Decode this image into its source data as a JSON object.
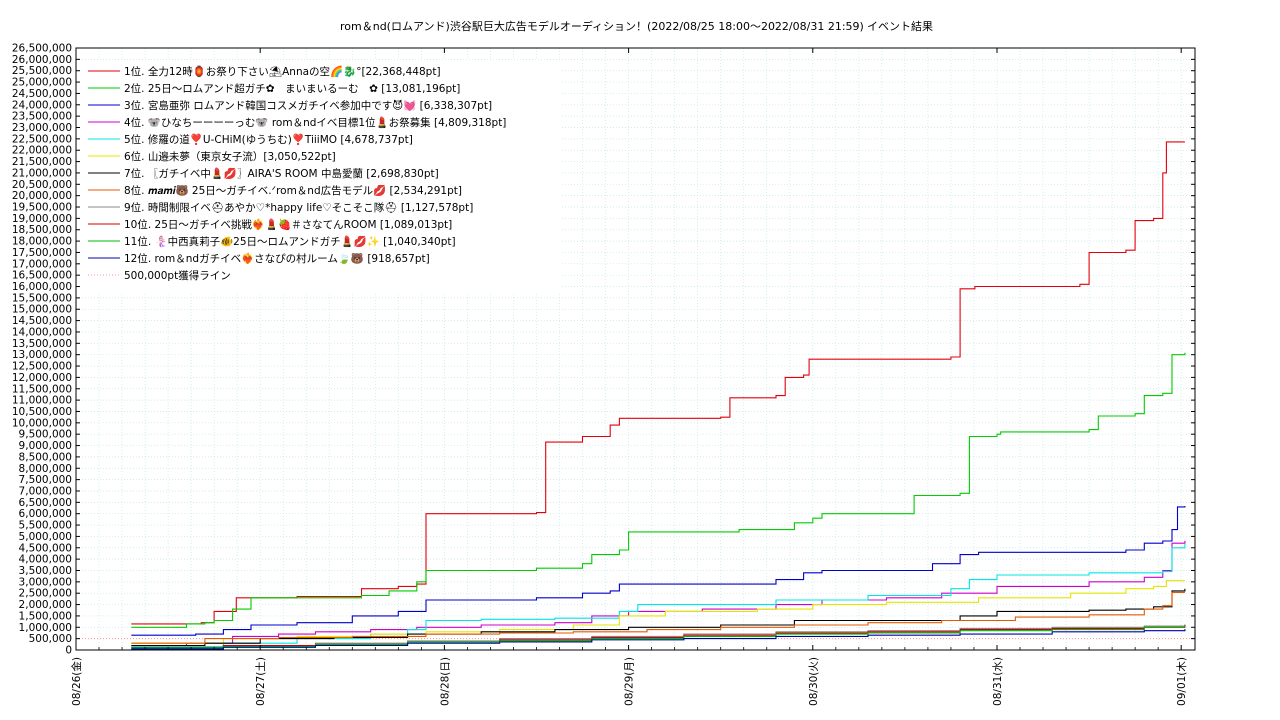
{
  "chart_data": {
    "type": "line",
    "title": "rom＆nd(ロムアンド)渋谷駅巨大広告モデルオーディション！(2022/08/25 18:00〜2022/08/31 21:59)",
    "subtitle": "イベント結果",
    "xlabel": "",
    "ylabel": "",
    "grid": true,
    "legend_position": "top-left",
    "x_ticks": [
      "08/26(金)",
      "08/27(土)",
      "08/28(日)",
      "08/29(月)",
      "08/30(火)",
      "08/31(水)",
      "09/01(木)"
    ],
    "x_range_days": [
      0,
      6.075
    ],
    "ylim": [
      0,
      26500000
    ],
    "y_tick_step": 500000,
    "y_ticks": [
      "0",
      "500,000",
      "1,000,000",
      "1,500,000",
      "2,000,000",
      "2,500,000",
      "3,000,000",
      "3,500,000",
      "4,000,000",
      "4,500,000",
      "5,000,000",
      "5,500,000",
      "6,000,000",
      "6,500,000",
      "7,000,000",
      "7,500,000",
      "8,000,000",
      "8,500,000",
      "9,000,000",
      "9,500,000",
      "10,000,000",
      "10,500,000",
      "11,000,000",
      "11,500,000",
      "12,000,000",
      "12,500,000",
      "13,000,000",
      "13,500,000",
      "14,000,000",
      "14,500,000",
      "15,000,000",
      "15,500,000",
      "16,000,000",
      "16,500,000",
      "17,000,000",
      "17,500,000",
      "18,000,000",
      "18,500,000",
      "19,000,000",
      "19,500,000",
      "20,000,000",
      "20,500,000",
      "21,000,000",
      "21,500,000",
      "22,000,000",
      "22,500,000",
      "23,000,000",
      "23,500,000",
      "24,000,000",
      "24,500,000",
      "25,000,000",
      "25,500,000",
      "26,000,000",
      "26,500,000"
    ],
    "series": [
      {
        "name": "1位. 全力12時🏮お祭り下さい⛱Annaの空🌈🐉°[22,368,448pt]",
        "color": "#e3000b",
        "points": [
          [
            0.3,
            1150000
          ],
          [
            0.68,
            1200000
          ],
          [
            0.75,
            1700000
          ],
          [
            0.87,
            2300000
          ],
          [
            1.2,
            2350000
          ],
          [
            1.55,
            2700000
          ],
          [
            1.75,
            2800000
          ],
          [
            1.85,
            2900000
          ],
          [
            1.9,
            6000000
          ],
          [
            2.5,
            6050000
          ],
          [
            2.55,
            9150000
          ],
          [
            2.75,
            9400000
          ],
          [
            2.9,
            9900000
          ],
          [
            2.95,
            10200000
          ],
          [
            3.5,
            10250000
          ],
          [
            3.55,
            11100000
          ],
          [
            3.8,
            11200000
          ],
          [
            3.85,
            12000000
          ],
          [
            3.95,
            12100000
          ],
          [
            3.98,
            12800000
          ],
          [
            4.05,
            12800000
          ],
          [
            4.75,
            12900000
          ],
          [
            4.8,
            15900000
          ],
          [
            4.88,
            16000000
          ],
          [
            5.45,
            16100000
          ],
          [
            5.5,
            17500000
          ],
          [
            5.7,
            17600000
          ],
          [
            5.75,
            18900000
          ],
          [
            5.85,
            19000000
          ],
          [
            5.9,
            21000000
          ],
          [
            5.92,
            22368448
          ],
          [
            6.02,
            22368448
          ]
        ]
      },
      {
        "name": "2位. 25日〜ロムアンド超ガチ✿　まいまいるーむ　✿ [13,081,196pt]",
        "color": "#00cc00",
        "points": [
          [
            0.3,
            1000000
          ],
          [
            0.6,
            1150000
          ],
          [
            0.7,
            1200000
          ],
          [
            0.75,
            1300000
          ],
          [
            0.85,
            1800000
          ],
          [
            0.95,
            2300000
          ],
          [
            1.55,
            2400000
          ],
          [
            1.7,
            2600000
          ],
          [
            1.85,
            3000000
          ],
          [
            1.9,
            3500000
          ],
          [
            2.5,
            3600000
          ],
          [
            2.75,
            3800000
          ],
          [
            2.8,
            4200000
          ],
          [
            2.95,
            4400000
          ],
          [
            3.0,
            5200000
          ],
          [
            3.6,
            5300000
          ],
          [
            3.9,
            5600000
          ],
          [
            4.0,
            5800000
          ],
          [
            4.05,
            6000000
          ],
          [
            4.5,
            6000000
          ],
          [
            4.55,
            6800000
          ],
          [
            4.8,
            6900000
          ],
          [
            4.85,
            9400000
          ],
          [
            5.0,
            9500000
          ],
          [
            5.02,
            9600000
          ],
          [
            5.5,
            9700000
          ],
          [
            5.55,
            10300000
          ],
          [
            5.75,
            10400000
          ],
          [
            5.8,
            11200000
          ],
          [
            5.9,
            11300000
          ],
          [
            5.95,
            13000000
          ],
          [
            6.02,
            13081196
          ]
        ]
      },
      {
        "name": "3位. 宮島亜弥 ロムアンド韓国コスメガチイベ参加中です😈💓 [6,338,307pt]",
        "color": "#0000cc",
        "points": [
          [
            0.3,
            650000
          ],
          [
            0.65,
            700000
          ],
          [
            0.8,
            900000
          ],
          [
            0.95,
            1100000
          ],
          [
            1.2,
            1200000
          ],
          [
            1.5,
            1500000
          ],
          [
            1.75,
            1700000
          ],
          [
            1.9,
            2200000
          ],
          [
            2.5,
            2300000
          ],
          [
            2.75,
            2500000
          ],
          [
            2.9,
            2600000
          ],
          [
            2.95,
            2900000
          ],
          [
            3.6,
            2900000
          ],
          [
            3.8,
            3100000
          ],
          [
            3.95,
            3400000
          ],
          [
            4.05,
            3500000
          ],
          [
            4.5,
            3500000
          ],
          [
            4.65,
            3800000
          ],
          [
            4.8,
            4200000
          ],
          [
            4.9,
            4300000
          ],
          [
            5.0,
            4300000
          ],
          [
            5.7,
            4400000
          ],
          [
            5.8,
            4700000
          ],
          [
            5.9,
            4800000
          ],
          [
            5.95,
            5300000
          ],
          [
            5.98,
            6300000
          ],
          [
            6.02,
            6338307
          ]
        ]
      },
      {
        "name": "4位. 🐨ひなちーーーーっむ🐨 rom＆ndイベ目標1位💄お祭募集 [4,809,318pt]",
        "color": "#cc00cc",
        "points": [
          [
            0.3,
            200000
          ],
          [
            0.6,
            300000
          ],
          [
            0.85,
            600000
          ],
          [
            1.1,
            700000
          ],
          [
            1.3,
            800000
          ],
          [
            1.6,
            900000
          ],
          [
            1.85,
            1000000
          ],
          [
            2.2,
            1100000
          ],
          [
            2.6,
            1200000
          ],
          [
            2.8,
            1500000
          ],
          [
            3.0,
            1700000
          ],
          [
            3.4,
            1800000
          ],
          [
            3.8,
            2000000
          ],
          [
            4.05,
            2200000
          ],
          [
            4.4,
            2300000
          ],
          [
            4.7,
            2500000
          ],
          [
            5.0,
            2800000
          ],
          [
            5.5,
            3000000
          ],
          [
            5.8,
            3200000
          ],
          [
            5.9,
            3500000
          ],
          [
            5.95,
            4700000
          ],
          [
            6.02,
            4809318
          ]
        ]
      },
      {
        "name": "5位. 修羅の道❣️U-CHiM(ゆうちむ)❣️TiiiMO [4,678,737pt]",
        "color": "#00e5e5",
        "points": [
          [
            0.3,
            150000
          ],
          [
            0.8,
            300000
          ],
          [
            1.2,
            500000
          ],
          [
            1.6,
            700000
          ],
          [
            1.8,
            900000
          ],
          [
            1.9,
            1300000
          ],
          [
            2.2,
            1350000
          ],
          [
            2.6,
            1400000
          ],
          [
            2.95,
            1700000
          ],
          [
            3.05,
            2000000
          ],
          [
            3.8,
            2200000
          ],
          [
            4.3,
            2400000
          ],
          [
            4.75,
            2700000
          ],
          [
            4.85,
            3100000
          ],
          [
            5.0,
            3300000
          ],
          [
            5.5,
            3400000
          ],
          [
            5.9,
            3450000
          ],
          [
            5.95,
            4500000
          ],
          [
            6.02,
            4678737
          ]
        ]
      },
      {
        "name": "6位. 山邉未夢（東京女子流）[3,050,522pt]",
        "color": "#e5e500",
        "points": [
          [
            0.3,
            300000
          ],
          [
            0.8,
            500000
          ],
          [
            1.2,
            600000
          ],
          [
            1.6,
            700000
          ],
          [
            1.9,
            800000
          ],
          [
            2.3,
            900000
          ],
          [
            2.7,
            1100000
          ],
          [
            2.95,
            1500000
          ],
          [
            3.2,
            1700000
          ],
          [
            3.7,
            1800000
          ],
          [
            4.0,
            2000000
          ],
          [
            4.4,
            2100000
          ],
          [
            4.9,
            2300000
          ],
          [
            5.4,
            2500000
          ],
          [
            5.7,
            2700000
          ],
          [
            5.85,
            2800000
          ],
          [
            5.92,
            3050522
          ],
          [
            6.02,
            3050522
          ]
        ]
      },
      {
        "name": "7位. 〖ガチイベ中💄💋〗AIRA'S ROOM 中島愛蘭 [2,698,830pt]",
        "color": "#000000",
        "points": [
          [
            0.3,
            200000
          ],
          [
            0.7,
            300000
          ],
          [
            1.0,
            500000
          ],
          [
            1.4,
            550000
          ],
          [
            1.8,
            700000
          ],
          [
            2.2,
            800000
          ],
          [
            2.6,
            900000
          ],
          [
            3.0,
            1000000
          ],
          [
            3.5,
            1100000
          ],
          [
            3.9,
            1300000
          ],
          [
            4.3,
            1300000
          ],
          [
            4.8,
            1500000
          ],
          [
            5.0,
            1700000
          ],
          [
            5.5,
            1750000
          ],
          [
            5.7,
            1800000
          ],
          [
            5.85,
            1900000
          ],
          [
            5.95,
            2600000
          ],
          [
            6.02,
            2698830
          ]
        ]
      },
      {
        "name": "8位. 𝒎𝒂𝒎𝒊🐻 25日〜ガチイベ.ᐟrom＆nd広告モデル💋 [2,534,291pt]",
        "color": "#e55a00",
        "points": [
          [
            0.3,
            300000
          ],
          [
            0.7,
            500000
          ],
          [
            1.1,
            550000
          ],
          [
            1.5,
            600000
          ],
          [
            1.9,
            700000
          ],
          [
            2.3,
            750000
          ],
          [
            2.7,
            800000
          ],
          [
            3.1,
            900000
          ],
          [
            3.5,
            1000000
          ],
          [
            3.9,
            1100000
          ],
          [
            4.3,
            1200000
          ],
          [
            4.7,
            1300000
          ],
          [
            5.1,
            1450000
          ],
          [
            5.5,
            1550000
          ],
          [
            5.8,
            1800000
          ],
          [
            5.9,
            1950000
          ],
          [
            5.95,
            2534291
          ],
          [
            6.02,
            2534291
          ]
        ]
      },
      {
        "name": "9位. 時間制限イベ⛑あやか♡*happy life♡そこそこ隊⛑ [1,127,578pt]",
        "color": "#888888",
        "points": [
          [
            0.3,
            100000
          ],
          [
            0.8,
            200000
          ],
          [
            1.3,
            300000
          ],
          [
            1.8,
            400000
          ],
          [
            2.3,
            500000
          ],
          [
            2.8,
            600000
          ],
          [
            3.3,
            700000
          ],
          [
            3.8,
            800000
          ],
          [
            4.3,
            850000
          ],
          [
            4.8,
            950000
          ],
          [
            5.3,
            1000000
          ],
          [
            5.8,
            1050000
          ],
          [
            6.02,
            1127578
          ]
        ]
      },
      {
        "name": "10位. 25日〜ガチイベ挑戦❤️‍🔥💄🍓＃さなてんROOM [1,089,013pt]",
        "color": "#cc0000",
        "points": [
          [
            0.3,
            100000
          ],
          [
            0.8,
            200000
          ],
          [
            1.3,
            250000
          ],
          [
            1.8,
            350000
          ],
          [
            2.3,
            450000
          ],
          [
            2.8,
            550000
          ],
          [
            3.3,
            650000
          ],
          [
            3.8,
            750000
          ],
          [
            4.3,
            800000
          ],
          [
            4.8,
            900000
          ],
          [
            5.3,
            950000
          ],
          [
            5.8,
            1000000
          ],
          [
            6.02,
            1089013
          ]
        ]
      },
      {
        "name": "11位. 🧜🏻‍♀️中西真莉子🐠25日〜ロムアンドガチ💄💋✨ [1,040,340pt]",
        "color": "#00b800",
        "points": [
          [
            0.3,
            80000
          ],
          [
            0.8,
            150000
          ],
          [
            1.3,
            250000
          ],
          [
            1.8,
            350000
          ],
          [
            2.3,
            400000
          ],
          [
            2.8,
            500000
          ],
          [
            3.3,
            600000
          ],
          [
            3.8,
            700000
          ],
          [
            4.3,
            750000
          ],
          [
            4.8,
            850000
          ],
          [
            5.3,
            900000
          ],
          [
            5.8,
            1000000
          ],
          [
            6.02,
            1040340
          ]
        ]
      },
      {
        "name": "12位. rom＆ndガチイベ❤️‍🔥さなぴの村ルーム🍃🐻 [918,657pt]",
        "color": "#0000aa",
        "points": [
          [
            0.3,
            50000
          ],
          [
            0.8,
            120000
          ],
          [
            1.3,
            200000
          ],
          [
            1.8,
            300000
          ],
          [
            2.3,
            350000
          ],
          [
            2.8,
            450000
          ],
          [
            3.3,
            500000
          ],
          [
            3.8,
            600000
          ],
          [
            4.3,
            650000
          ],
          [
            4.8,
            700000
          ],
          [
            5.3,
            800000
          ],
          [
            5.8,
            850000
          ],
          [
            6.02,
            918657
          ]
        ]
      }
    ],
    "reference_line": {
      "name": "500,000pt獲得ライン",
      "value": 500000,
      "color": "#ff9999"
    }
  }
}
